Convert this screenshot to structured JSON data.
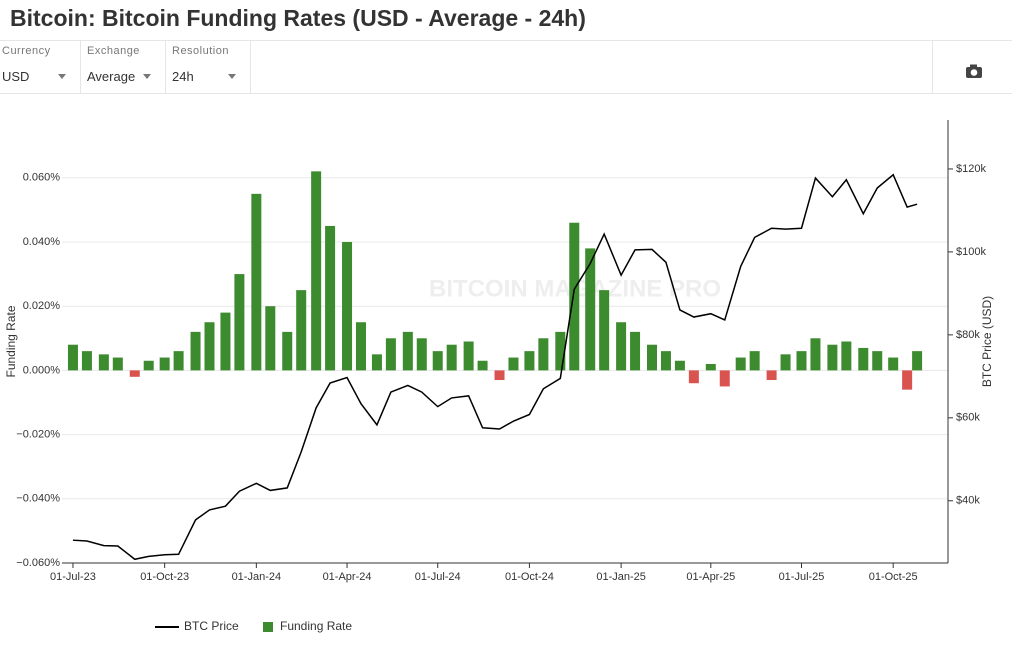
{
  "controls": [
    {
      "label": "Currency",
      "value": "USD"
    },
    {
      "label": "Exchange",
      "value": "Average"
    },
    {
      "label": "Resolution",
      "value": "24h"
    }
  ],
  "chart_data": {
    "type": "bar-line",
    "title": "Bitcoin: Bitcoin Funding Rates (USD - Average - 24h)",
    "watermark": "BITCOIN MAGAZINE PRO",
    "y_label": "Funding Rate",
    "y2_label": "BTC Price (USD)",
    "x": [
      "2023-07-01",
      "2023-07-15",
      "2023-08-01",
      "2023-08-15",
      "2023-09-01",
      "2023-09-15",
      "2023-10-01",
      "2023-10-15",
      "2023-11-01",
      "2023-11-15",
      "2023-12-01",
      "2023-12-15",
      "2024-01-01",
      "2024-01-15",
      "2024-02-01",
      "2024-02-15",
      "2024-03-01",
      "2024-03-15",
      "2024-04-01",
      "2024-04-15",
      "2024-05-01",
      "2024-05-15",
      "2024-06-01",
      "2024-06-15",
      "2024-07-01",
      "2024-07-15",
      "2024-08-01",
      "2024-08-15",
      "2024-09-01",
      "2024-09-15",
      "2024-10-01",
      "2024-10-15",
      "2024-11-01",
      "2024-11-15",
      "2024-12-01",
      "2024-12-15",
      "2025-01-01",
      "2025-01-15",
      "2025-02-01",
      "2025-02-15",
      "2025-03-01",
      "2025-03-15",
      "2025-04-01",
      "2025-04-15",
      "2025-05-01",
      "2025-05-15",
      "2025-06-01",
      "2025-06-15",
      "2025-07-01",
      "2025-07-15",
      "2025-08-01",
      "2025-08-15",
      "2025-09-01",
      "2025-09-15",
      "2025-10-01",
      "2025-10-15",
      "2025-10-25"
    ],
    "xlim": [
      "2023-06-20",
      "2025-11-25"
    ],
    "xticks": [
      {
        "value": "2023-07-01",
        "label": "01-Jul-23"
      },
      {
        "value": "2023-10-01",
        "label": "01-Oct-23"
      },
      {
        "value": "2024-01-01",
        "label": "01-Jan-24"
      },
      {
        "value": "2024-04-01",
        "label": "01-Apr-24"
      },
      {
        "value": "2024-07-01",
        "label": "01-Jul-24"
      },
      {
        "value": "2024-10-01",
        "label": "01-Oct-24"
      },
      {
        "value": "2025-01-01",
        "label": "01-Jan-25"
      },
      {
        "value": "2025-04-01",
        "label": "01-Apr-25"
      },
      {
        "value": "2025-07-01",
        "label": "01-Jul-25"
      },
      {
        "value": "2025-10-01",
        "label": "01-Oct-25"
      }
    ],
    "ylim": [
      -0.06,
      0.078
    ],
    "yticks": [
      {
        "value": -0.06,
        "label": "−0.060%"
      },
      {
        "value": -0.04,
        "label": "−0.040%"
      },
      {
        "value": -0.02,
        "label": "−0.020%"
      },
      {
        "value": 0,
        "label": "0.000%"
      },
      {
        "value": 0.02,
        "label": "0.020%"
      },
      {
        "value": 0.04,
        "label": "0.040%"
      },
      {
        "value": 0.06,
        "label": "0.060%"
      }
    ],
    "y2lim": [
      25000,
      131800
    ],
    "y2ticks": [
      {
        "value": 40000,
        "label": "$40k"
      },
      {
        "value": 60000,
        "label": "$60k"
      },
      {
        "value": 80000,
        "label": "$80k"
      },
      {
        "value": 100000,
        "label": "$100k"
      },
      {
        "value": 120000,
        "label": "$120k"
      }
    ],
    "grid": true,
    "series": [
      {
        "name": "BTC Price",
        "type": "line",
        "axis": "y2",
        "color": "#000000",
        "values": [
          30500,
          30300,
          29200,
          29100,
          25900,
          26600,
          27000,
          27100,
          35400,
          37800,
          38700,
          42300,
          44200,
          42500,
          43100,
          51800,
          62400,
          68400,
          69700,
          63400,
          58300,
          66200,
          67800,
          66200,
          62700,
          64800,
          65300,
          57600,
          57300,
          59200,
          60800,
          67000,
          69500,
          91000,
          97200,
          104300,
          94400,
          100500,
          100600,
          97500,
          86000,
          84300,
          85100,
          83600,
          96500,
          103500,
          105700,
          105500,
          105700,
          117800,
          113300,
          117400,
          109200,
          115400,
          118600,
          110800,
          111500
        ]
      },
      {
        "name": "Funding Rate",
        "type": "bar",
        "color": "#3d8b2f",
        "negative_color": "#d9534f",
        "values": [
          0.008,
          0.006,
          0.005,
          0.004,
          -0.002,
          0.003,
          0.004,
          0.006,
          0.012,
          0.015,
          0.018,
          0.03,
          0.055,
          0.02,
          0.012,
          0.025,
          0.062,
          0.045,
          0.04,
          0.015,
          0.005,
          0.01,
          0.012,
          0.01,
          0.006,
          0.008,
          0.009,
          0.003,
          -0.003,
          0.004,
          0.006,
          0.01,
          0.012,
          0.046,
          0.038,
          0.025,
          0.015,
          0.012,
          0.008,
          0.006,
          0.003,
          -0.004,
          0.002,
          -0.005,
          0.004,
          0.006,
          -0.003,
          0.005,
          0.006,
          0.01,
          0.008,
          0.009,
          0.007,
          0.006,
          0.004,
          -0.006,
          0.006
        ]
      }
    ]
  }
}
